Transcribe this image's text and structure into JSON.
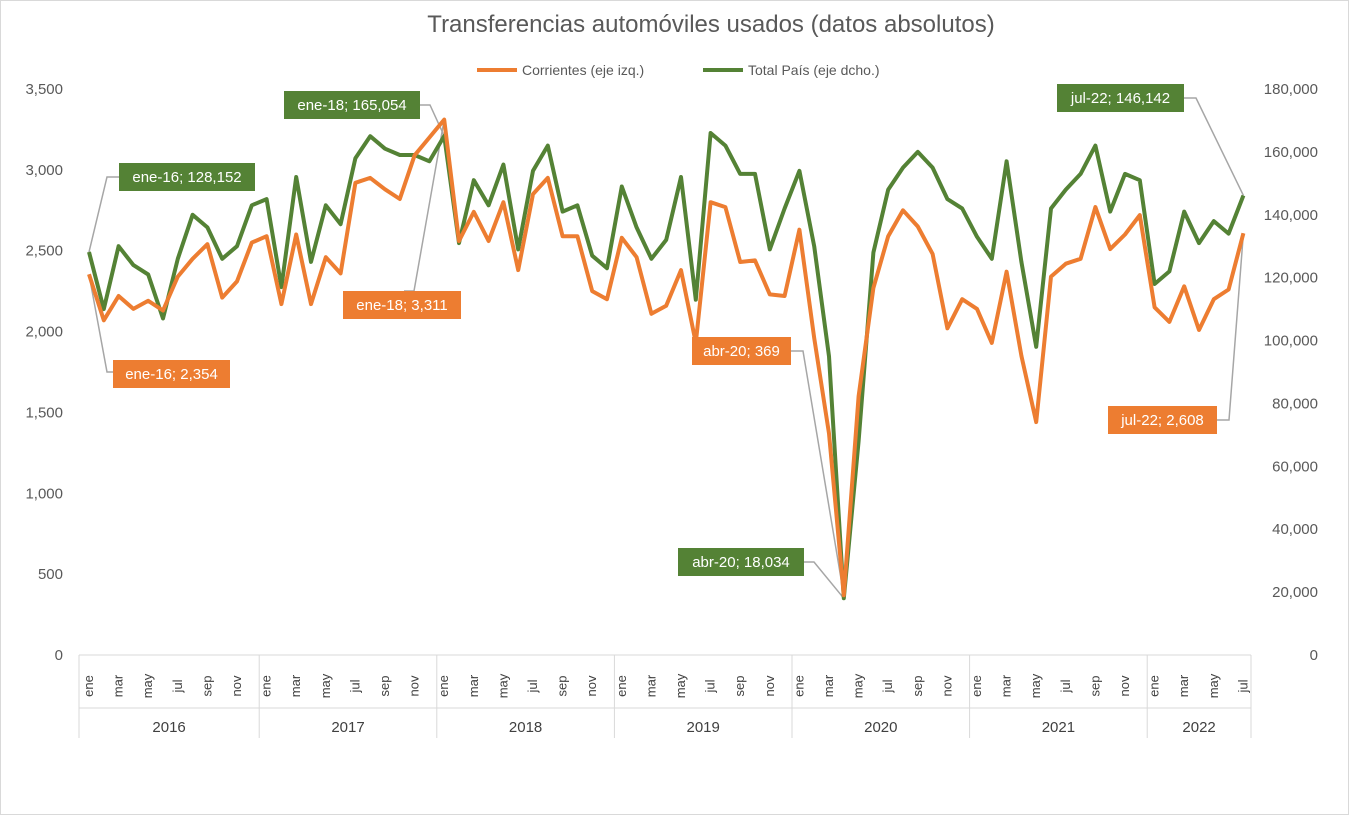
{
  "chart_data": {
    "type": "line",
    "title": "Transferencias automóviles usados (datos absolutos)",
    "legend_position": "top",
    "grid": false,
    "y_left": {
      "range": [
        0,
        3500
      ],
      "ticks": [
        "0",
        "500",
        "1,000",
        "1,500",
        "2,000",
        "2,500",
        "3,000",
        "3,500"
      ]
    },
    "y_right": {
      "range": [
        0,
        180000
      ],
      "ticks": [
        "0",
        "20,000",
        "40,000",
        "60,000",
        "80,000",
        "100,000",
        "120,000",
        "140,000",
        "160,000",
        "180,000"
      ]
    },
    "month_labels": [
      "ene",
      "mar",
      "may",
      "jul",
      "sep",
      "nov"
    ],
    "years": [
      "2016",
      "2017",
      "2018",
      "2019",
      "2020",
      "2021",
      "2022"
    ],
    "x_count": 79,
    "colors": {
      "corrientes": "#ED7D31",
      "total": "#548235",
      "callout_line": "#A6A6A6",
      "axis": "#D9D9D9"
    },
    "series": [
      {
        "name": "Corrientes (eje izq.)",
        "axis": "left",
        "color": "#ED7D31",
        "values": [
          2354,
          2070,
          2220,
          2140,
          2190,
          2130,
          2340,
          2450,
          2540,
          2210,
          2310,
          2550,
          2590,
          2170,
          2600,
          2170,
          2460,
          2360,
          2920,
          2950,
          2880,
          2820,
          3090,
          3200,
          3311,
          2560,
          2740,
          2560,
          2800,
          2380,
          2850,
          2950,
          2590,
          2590,
          2250,
          2200,
          2580,
          2460,
          2110,
          2160,
          2380,
          1930,
          2800,
          2770,
          2430,
          2440,
          2230,
          2220,
          2630,
          1960,
          1370,
          369,
          1600,
          2270,
          2590,
          2750,
          2650,
          2480,
          2020,
          2200,
          2140,
          1930,
          2370,
          1850,
          1440,
          2340,
          2420,
          2450,
          2770,
          2510,
          2600,
          2720,
          2150,
          2060,
          2280,
          2010,
          2200,
          2260,
          2608
        ]
      },
      {
        "name": "Total País (eje dcho.)",
        "axis": "right",
        "color": "#548235",
        "values": [
          128152,
          110000,
          130000,
          124000,
          121000,
          107000,
          126000,
          140000,
          136000,
          126000,
          130000,
          143000,
          145000,
          117000,
          152000,
          125000,
          143000,
          137000,
          158000,
          165000,
          161000,
          159000,
          159000,
          157000,
          165054,
          131000,
          151000,
          143000,
          156000,
          129000,
          154000,
          162000,
          141000,
          143000,
          127000,
          123000,
          149000,
          136000,
          126000,
          132000,
          152000,
          113000,
          166000,
          162000,
          153000,
          153000,
          129000,
          142000,
          154000,
          130000,
          95000,
          18034,
          68000,
          128000,
          148000,
          155000,
          160000,
          155000,
          145000,
          142000,
          133000,
          126000,
          157000,
          125000,
          98000,
          142000,
          148000,
          153000,
          162000,
          141000,
          153000,
          151000,
          118000,
          122000,
          141000,
          131000,
          138000,
          134000,
          146142
        ]
      }
    ],
    "annotations": [
      {
        "text": "ene-16; 128,152",
        "series": "Total País (eje dcho.)",
        "index": 0
      },
      {
        "text": "ene-16; 2,354",
        "series": "Corrientes (eje izq.)",
        "index": 0
      },
      {
        "text": "ene-18; 165,054",
        "series": "Total País (eje dcho.)",
        "index": 24
      },
      {
        "text": "ene-18; 3,311",
        "series": "Corrientes (eje izq.)",
        "index": 24
      },
      {
        "text": "abr-20; 369",
        "series": "Corrientes (eje izq.)",
        "index": 51
      },
      {
        "text": "abr-20; 18,034",
        "series": "Total País (eje dcho.)",
        "index": 51
      },
      {
        "text": "jul-22; 146,142",
        "series": "Total País (eje dcho.)",
        "index": 78
      },
      {
        "text": "jul-22; 2,608",
        "series": "Corrientes (eje izq.)",
        "index": 78
      }
    ]
  }
}
